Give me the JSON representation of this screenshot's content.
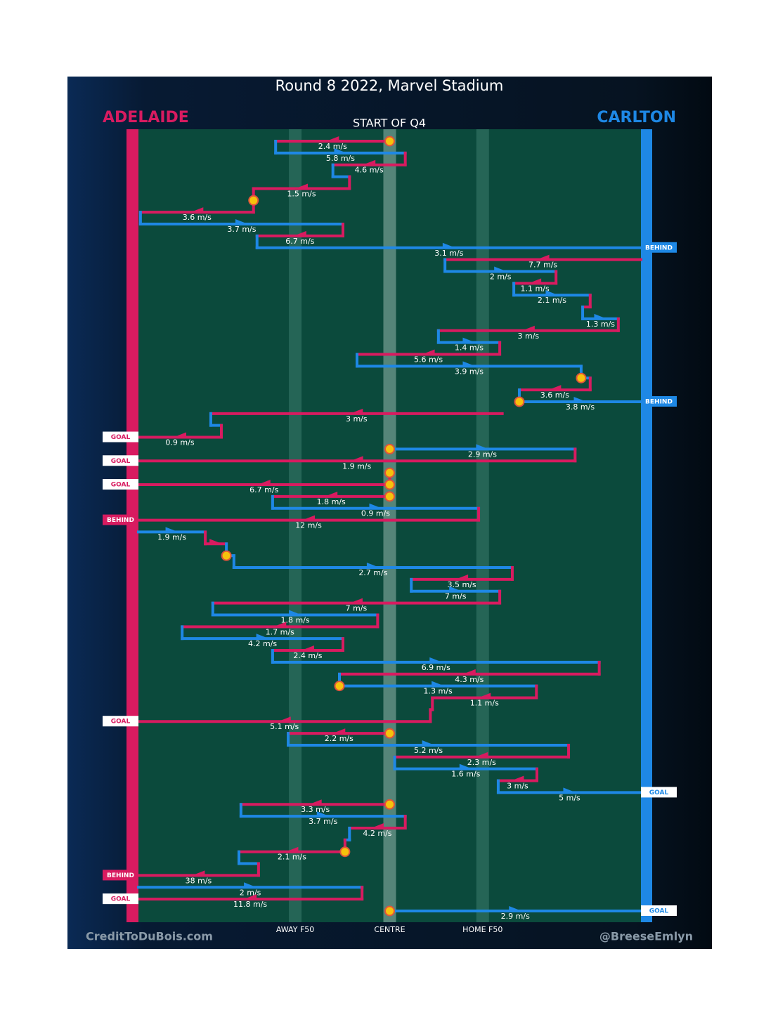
{
  "chart_data": {
    "type": "chains",
    "title": "Round 8 2022, Marvel Stadium",
    "subtitle": "START OF Q4",
    "credit_left": "CreditToDuBois.com",
    "credit_right": "@BreeseEmlyn",
    "teams": [
      {
        "name": "ADELAIDE",
        "color": "#d81b60"
      },
      {
        "name": "CARLTON",
        "color": "#1e88e5"
      }
    ],
    "xlim": [
      0,
      100
    ],
    "xticks": [
      {
        "value": 31.2,
        "label": "AWAY F50"
      },
      {
        "value": 50,
        "label": "CENTRE"
      },
      {
        "value": 68.5,
        "label": "HOME F50"
      }
    ],
    "rows": [
      {
        "team": 0,
        "from": 50,
        "to": 27.3,
        "speed": "2.4 m/s",
        "stoppage": true
      },
      {
        "team": 1,
        "from": 27.3,
        "to": 53.1,
        "speed": "5.8 m/s"
      },
      {
        "team": 0,
        "from": 53.1,
        "to": 38.7,
        "speed": "4.6 m/s"
      },
      {
        "team": 1,
        "from": 38.7,
        "to": 42.0
      },
      {
        "team": 0,
        "from": 42.0,
        "to": 22.9,
        "speed": "1.5 m/s"
      },
      {
        "team": 0,
        "from": 22.9,
        "to": 22.9,
        "stoppage": true
      },
      {
        "team": 0,
        "from": 22.9,
        "to": 0.4,
        "speed": "3.6 m/s"
      },
      {
        "team": 1,
        "from": 0.4,
        "to": 40.7,
        "speed": "3.7 m/s"
      },
      {
        "team": 0,
        "from": 40.7,
        "to": 23.6,
        "speed": "6.7 m/s"
      },
      {
        "team": 1,
        "from": 23.6,
        "to": 100,
        "speed": "3.1 m/s",
        "result": "BEHIND"
      },
      {
        "team": 0,
        "from": 100,
        "to": 61.0,
        "speed": "7.7 m/s"
      },
      {
        "team": 1,
        "from": 61.0,
        "to": 83.1,
        "speed": "2 m/s"
      },
      {
        "team": 0,
        "from": 83.1,
        "to": 74.7,
        "speed": "1.1 m/s"
      },
      {
        "team": 1,
        "from": 74.7,
        "to": 89.9,
        "speed": "2.1 m/s"
      },
      {
        "team": 0,
        "from": 89.9,
        "to": 88.4
      },
      {
        "team": 1,
        "from": 88.4,
        "to": 95.5,
        "speed": "1.3 m/s"
      },
      {
        "team": 0,
        "from": 95.5,
        "to": 59.7,
        "speed": "3 m/s"
      },
      {
        "team": 1,
        "from": 59.7,
        "to": 71.9,
        "speed": "1.4 m/s"
      },
      {
        "team": 0,
        "from": 71.9,
        "to": 43.5,
        "speed": "5.6 m/s"
      },
      {
        "team": 1,
        "from": 43.5,
        "to": 88.1,
        "speed": "3.9 m/s"
      },
      {
        "team": 1,
        "from": 88.1,
        "to": 89.9,
        "stoppage": true
      },
      {
        "team": 0,
        "from": 89.9,
        "to": 75.8,
        "speed": "3.6 m/s"
      },
      {
        "team": 1,
        "from": 75.8,
        "to": 100,
        "speed": "3.8 m/s",
        "result": "BEHIND",
        "stoppage": true
      },
      {
        "team": 0,
        "from": 72.4,
        "to": 14.4,
        "speed": "3 m/s"
      },
      {
        "team": 1,
        "from": 14.4,
        "to": 16.5
      },
      {
        "team": 0,
        "from": 16.5,
        "to": 0,
        "speed": "0.9 m/s",
        "result": "GOAL"
      },
      {
        "team": 1,
        "from": 50,
        "to": 86.9,
        "speed": "2.9 m/s",
        "stoppage": true
      },
      {
        "team": 0,
        "from": 86.9,
        "to": 0,
        "speed": "1.9 m/s",
        "result": "GOAL"
      },
      {
        "team": 0,
        "from": 50,
        "to": 50,
        "stoppage": true
      },
      {
        "team": 0,
        "from": 50,
        "to": 0,
        "speed": "6.7 m/s",
        "result": "GOAL",
        "stoppage": true
      },
      {
        "team": 0,
        "from": 50,
        "to": 26.7,
        "speed": "1.8 m/s",
        "stoppage": true
      },
      {
        "team": 1,
        "from": 26.7,
        "to": 67.7,
        "speed": "0.9 m/s"
      },
      {
        "team": 0,
        "from": 67.7,
        "to": 0,
        "speed": "12 m/s",
        "result": "BEHIND"
      },
      {
        "team": 1,
        "from": 0,
        "to": 13.3,
        "speed": "1.9 m/s"
      },
      {
        "team": 0,
        "from": 13.3,
        "to": 17.5
      },
      {
        "team": 1,
        "from": 17.5,
        "to": 19.0,
        "stoppage": true
      },
      {
        "team": 1,
        "from": 19.0,
        "to": 74.4,
        "speed": "2.7 m/s"
      },
      {
        "team": 0,
        "from": 74.4,
        "to": 54.3,
        "speed": "3.5 m/s"
      },
      {
        "team": 1,
        "from": 54.3,
        "to": 71.9,
        "speed": "7 m/s"
      },
      {
        "team": 0,
        "from": 71.9,
        "to": 14.8,
        "speed": "7 m/s"
      },
      {
        "team": 1,
        "from": 14.8,
        "to": 47.6,
        "speed": "1.8 m/s"
      },
      {
        "team": 0,
        "from": 47.6,
        "to": 8.7,
        "speed": "1.7 m/s"
      },
      {
        "team": 1,
        "from": 8.7,
        "to": 40.7,
        "speed": "4.2 m/s"
      },
      {
        "team": 0,
        "from": 40.7,
        "to": 26.7,
        "speed": "2.4 m/s"
      },
      {
        "team": 1,
        "from": 26.7,
        "to": 91.7,
        "speed": "6.9 m/s"
      },
      {
        "team": 0,
        "from": 91.7,
        "to": 40.0,
        "speed": "4.3 m/s"
      },
      {
        "team": 1,
        "from": 40.0,
        "to": 79.2,
        "speed": "1.3 m/s",
        "stoppage": true
      },
      {
        "team": 0,
        "from": 79.2,
        "to": 58.5,
        "speed": "1.1 m/s"
      },
      {
        "team": 0,
        "from": 58.5,
        "to": 58.1
      },
      {
        "team": 0,
        "from": 58.1,
        "to": 0,
        "speed": "5.1 m/s",
        "result": "GOAL"
      },
      {
        "team": 0,
        "from": 50,
        "to": 29.8,
        "speed": "2.2 m/s",
        "stoppage": true
      },
      {
        "team": 1,
        "from": 29.8,
        "to": 85.6,
        "speed": "5.2 m/s"
      },
      {
        "team": 0,
        "from": 85.6,
        "to": 51.0,
        "speed": "2.3 m/s"
      },
      {
        "team": 1,
        "from": 51.0,
        "to": 79.3,
        "speed": "1.6 m/s"
      },
      {
        "team": 0,
        "from": 79.3,
        "to": 71.6,
        "speed": "3 m/s"
      },
      {
        "team": 1,
        "from": 71.6,
        "to": 100,
        "speed": "5 m/s",
        "result": "GOAL"
      },
      {
        "team": 0,
        "from": 50,
        "to": 20.4,
        "speed": "3.3 m/s",
        "stoppage": true
      },
      {
        "team": 1,
        "from": 20.4,
        "to": 53.1,
        "speed": "3.7 m/s"
      },
      {
        "team": 0,
        "from": 53.1,
        "to": 42.0,
        "speed": "4.2 m/s"
      },
      {
        "team": 1,
        "from": 42.0,
        "to": 41.1
      },
      {
        "team": 0,
        "from": 41.1,
        "to": 20.0,
        "speed": "2.1 m/s",
        "stoppage": true
      },
      {
        "team": 1,
        "from": 20.0,
        "to": 23.9
      },
      {
        "team": 0,
        "from": 23.9,
        "to": 0,
        "speed": "38 m/s",
        "result": "BEHIND"
      },
      {
        "team": 1,
        "from": 0,
        "to": 44.5,
        "speed": "2 m/s"
      },
      {
        "team": 0,
        "from": 44.5,
        "to": 0,
        "speed": "11.8 m/s",
        "result": "GOAL"
      },
      {
        "team": 1,
        "from": 50,
        "to": 100,
        "speed": "2.9 m/s",
        "result": "GOAL",
        "stoppage": true
      }
    ]
  }
}
